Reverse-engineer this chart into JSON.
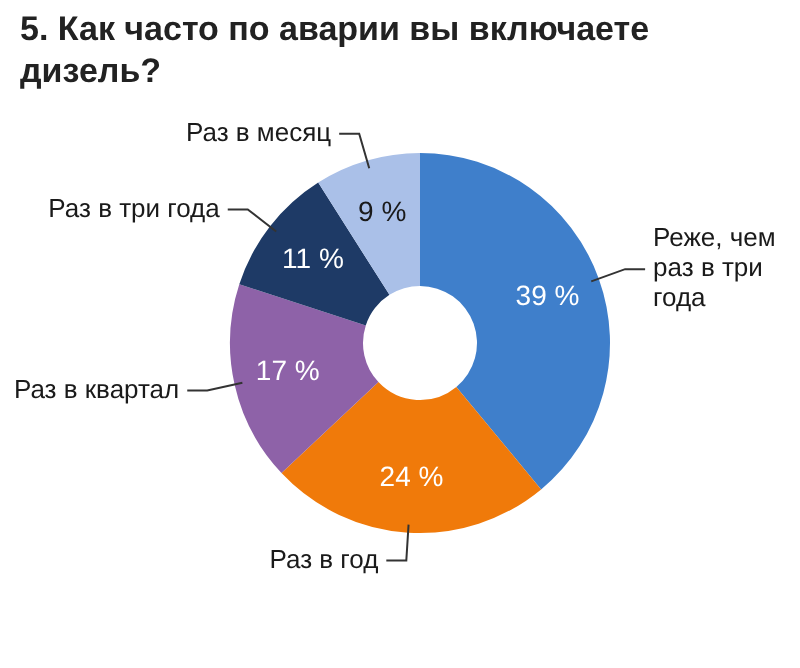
{
  "chart_data": {
    "type": "donut",
    "title": "5. Как часто по аварии вы включаете дизель?",
    "categories": [
      "Реже, чем раз в три года",
      "Раз в год",
      "Раз в квартал",
      "Раз в три года",
      "Раз в месяц"
    ],
    "values": [
      39,
      24,
      17,
      11,
      9
    ],
    "colors": [
      "#3f7fcb",
      "#f07a0a",
      "#8e62a8",
      "#1e3a66",
      "#aac0e8"
    ],
    "value_labels": [
      "39 %",
      "24 %",
      "17 %",
      "11 %",
      "9 %"
    ],
    "legend": false
  }
}
